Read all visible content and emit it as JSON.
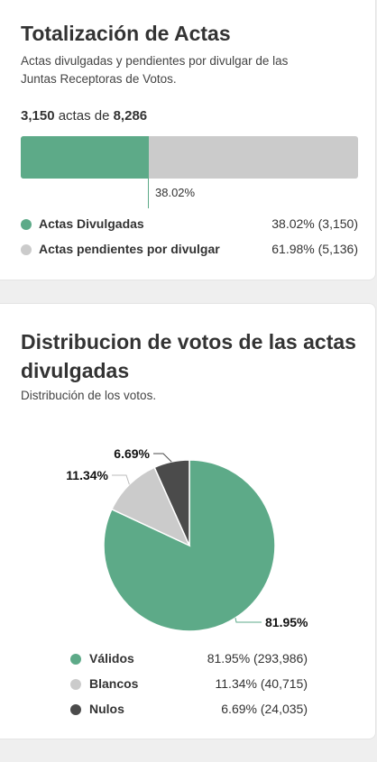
{
  "totalizacion": {
    "title": "Totalización de Actas",
    "subtitle_line1": "Actas divulgadas y pendientes por divulgar de las",
    "subtitle_line2": "Juntas Receptoras de Votos.",
    "count_divulgadas": "3,150",
    "count_mid": " actas de ",
    "count_total": "8,286",
    "progress_fraction": 0.3802,
    "progress_label": "38.02%",
    "legend": [
      {
        "label": "Actas Divulgadas",
        "value": "38.02% (3,150)",
        "color": "#5daa88"
      },
      {
        "label": "Actas pendientes por divulgar",
        "value": "61.98% (5,136)",
        "color": "#cbcbcb"
      }
    ]
  },
  "distribucion": {
    "title_line1": "Distribucion de votos de las actas",
    "title_line2": "divulgadas",
    "subtitle": "Distribución de los votos.",
    "legend": [
      {
        "label": "Válidos",
        "value": "81.95% (293,986)",
        "color": "#5daa88"
      },
      {
        "label": "Blancos",
        "value": "11.34% (40,715)",
        "color": "#cbcbcb"
      },
      {
        "label": "Nulos",
        "value": "6.69% (24,035)",
        "color": "#4b4b4b"
      }
    ]
  },
  "chart_data": {
    "type": "pie",
    "categories": [
      "Válidos",
      "Blancos",
      "Nulos"
    ],
    "values": [
      81.95,
      11.34,
      6.69
    ],
    "labels": [
      "81.95%",
      "11.34%",
      "6.69%"
    ],
    "colors": [
      "#5daa88",
      "#cbcbcb",
      "#4b4b4b"
    ]
  }
}
